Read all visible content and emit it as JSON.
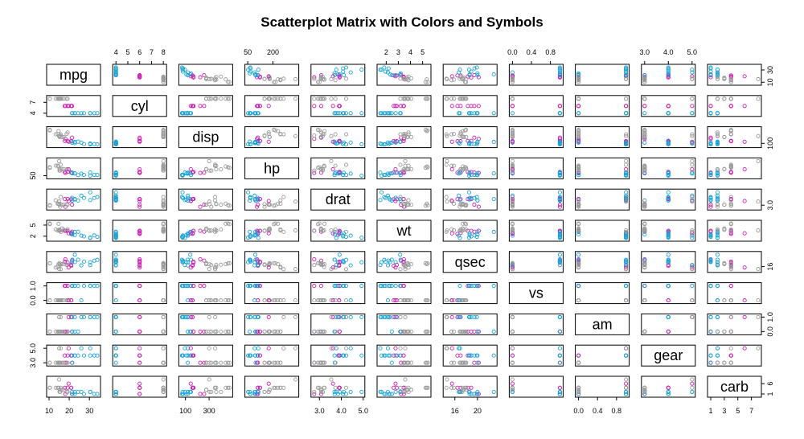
{
  "chart_data": {
    "type": "scatter",
    "title": "Scatterplot Matrix with Colors and Symbols",
    "variables": [
      "mpg",
      "cyl",
      "disp",
      "hp",
      "drat",
      "wt",
      "qsec",
      "vs",
      "am",
      "gear",
      "carb"
    ],
    "group_variable": "cyl",
    "group_colors": {
      "4": "#1ba3d6",
      "6": "#cc1fb2",
      "8": "#9b9b9b"
    },
    "axis_ranges": {
      "mpg": [
        10.4,
        33.9
      ],
      "cyl": [
        4,
        8
      ],
      "disp": [
        71.1,
        472
      ],
      "hp": [
        52,
        335
      ],
      "drat": [
        2.76,
        4.93
      ],
      "wt": [
        1.513,
        5.424
      ],
      "qsec": [
        14.5,
        22.9
      ],
      "vs": [
        0,
        1
      ],
      "am": [
        0,
        1
      ],
      "gear": [
        3,
        5
      ],
      "carb": [
        1,
        8
      ]
    },
    "top_ticks": {
      "cyl": [
        "4",
        "5",
        "6",
        "7",
        "8"
      ],
      "hp": [
        "50",
        "200"
      ],
      "wt": [
        "2",
        "3",
        "4",
        "5"
      ],
      "vs": [
        "0.0",
        "0.4",
        "0.8"
      ],
      "gear": [
        "3.0",
        "4.0",
        "5.0"
      ]
    },
    "bottom_ticks": {
      "mpg": [
        "10",
        "20",
        "30"
      ],
      "disp": [
        "100",
        "300"
      ],
      "drat": [
        "3.0",
        "4.0",
        "5.0"
      ],
      "qsec": [
        "16",
        "20"
      ],
      "am": [
        "0.0",
        "0.4",
        "0.8"
      ],
      "carb": [
        "1",
        "3",
        "5",
        "7"
      ]
    },
    "left_ticks": {
      "cyl": [
        "4",
        "7"
      ],
      "hp": [
        "50"
      ],
      "wt": [
        "2",
        "5"
      ],
      "vs": [
        "0.0",
        "1.0"
      ],
      "gear": [
        "3.0",
        "5.0"
      ]
    },
    "right_ticks": {
      "mpg": [
        "10",
        "30"
      ],
      "disp": [
        "100"
      ],
      "drat": [
        "3.0"
      ],
      "qsec": [
        "16"
      ],
      "am": [
        "0.0",
        "1.0"
      ],
      "carb": [
        "1",
        "6"
      ]
    },
    "rows": [
      [
        21.0,
        6,
        160.0,
        110,
        3.9,
        2.62,
        16.46,
        0,
        1,
        4,
        4
      ],
      [
        21.0,
        6,
        160.0,
        110,
        3.9,
        2.875,
        17.02,
        0,
        1,
        4,
        4
      ],
      [
        22.8,
        4,
        108.0,
        93,
        3.85,
        2.32,
        18.61,
        1,
        1,
        4,
        1
      ],
      [
        21.4,
        6,
        258.0,
        110,
        3.08,
        3.215,
        19.44,
        1,
        0,
        3,
        1
      ],
      [
        18.7,
        8,
        360.0,
        175,
        3.15,
        3.44,
        17.02,
        0,
        0,
        3,
        2
      ],
      [
        18.1,
        6,
        225.0,
        105,
        2.76,
        3.46,
        20.22,
        1,
        0,
        3,
        1
      ],
      [
        14.3,
        8,
        360.0,
        245,
        3.21,
        3.57,
        15.84,
        0,
        0,
        3,
        4
      ],
      [
        24.4,
        4,
        146.7,
        62,
        3.69,
        3.19,
        20.0,
        1,
        0,
        4,
        2
      ],
      [
        22.8,
        4,
        140.8,
        95,
        3.92,
        3.15,
        22.9,
        1,
        0,
        4,
        2
      ],
      [
        19.2,
        6,
        167.6,
        123,
        3.92,
        3.44,
        18.3,
        1,
        0,
        4,
        4
      ],
      [
        17.8,
        6,
        167.6,
        123,
        3.92,
        3.44,
        18.9,
        1,
        0,
        4,
        4
      ],
      [
        16.4,
        8,
        275.8,
        180,
        3.07,
        4.07,
        17.4,
        0,
        0,
        3,
        3
      ],
      [
        17.3,
        8,
        275.8,
        180,
        3.07,
        3.73,
        17.6,
        0,
        0,
        3,
        3
      ],
      [
        15.2,
        8,
        275.8,
        180,
        3.07,
        3.78,
        18.0,
        0,
        0,
        3,
        3
      ],
      [
        10.4,
        8,
        472.0,
        205,
        2.93,
        5.25,
        17.98,
        0,
        0,
        3,
        4
      ],
      [
        10.4,
        8,
        460.0,
        215,
        3.0,
        5.424,
        17.82,
        0,
        0,
        3,
        4
      ],
      [
        14.7,
        8,
        440.0,
        230,
        3.23,
        5.345,
        17.42,
        0,
        0,
        3,
        4
      ],
      [
        32.4,
        4,
        78.7,
        66,
        4.08,
        2.2,
        19.47,
        1,
        1,
        4,
        1
      ],
      [
        30.4,
        4,
        75.7,
        52,
        4.93,
        1.615,
        18.52,
        1,
        1,
        4,
        2
      ],
      [
        33.9,
        4,
        71.1,
        65,
        4.22,
        1.835,
        19.9,
        1,
        1,
        4,
        1
      ],
      [
        21.5,
        4,
        120.1,
        97,
        3.7,
        2.465,
        20.01,
        1,
        0,
        3,
        1
      ],
      [
        15.5,
        8,
        318.0,
        150,
        2.76,
        3.52,
        16.87,
        0,
        0,
        3,
        2
      ],
      [
        15.2,
        8,
        304.0,
        150,
        3.15,
        3.435,
        17.3,
        0,
        0,
        3,
        2
      ],
      [
        13.3,
        8,
        350.0,
        245,
        3.73,
        3.84,
        15.41,
        0,
        0,
        3,
        4
      ],
      [
        19.2,
        8,
        400.0,
        175,
        3.08,
        3.845,
        17.05,
        0,
        0,
        3,
        2
      ],
      [
        27.3,
        4,
        79.0,
        66,
        4.08,
        1.935,
        18.9,
        1,
        1,
        4,
        1
      ],
      [
        26.0,
        4,
        120.3,
        91,
        4.43,
        2.14,
        16.7,
        0,
        1,
        5,
        2
      ],
      [
        30.4,
        4,
        95.1,
        113,
        3.77,
        1.513,
        16.9,
        1,
        1,
        5,
        2
      ],
      [
        15.8,
        8,
        351.0,
        264,
        4.22,
        3.17,
        14.5,
        0,
        1,
        5,
        4
      ],
      [
        19.7,
        6,
        145.0,
        175,
        3.62,
        2.77,
        15.5,
        0,
        1,
        5,
        6
      ],
      [
        15.0,
        8,
        301.0,
        335,
        3.54,
        3.57,
        14.6,
        0,
        1,
        5,
        8
      ],
      [
        21.4,
        4,
        121.0,
        109,
        4.11,
        2.78,
        18.6,
        1,
        1,
        4,
        2
      ]
    ]
  }
}
